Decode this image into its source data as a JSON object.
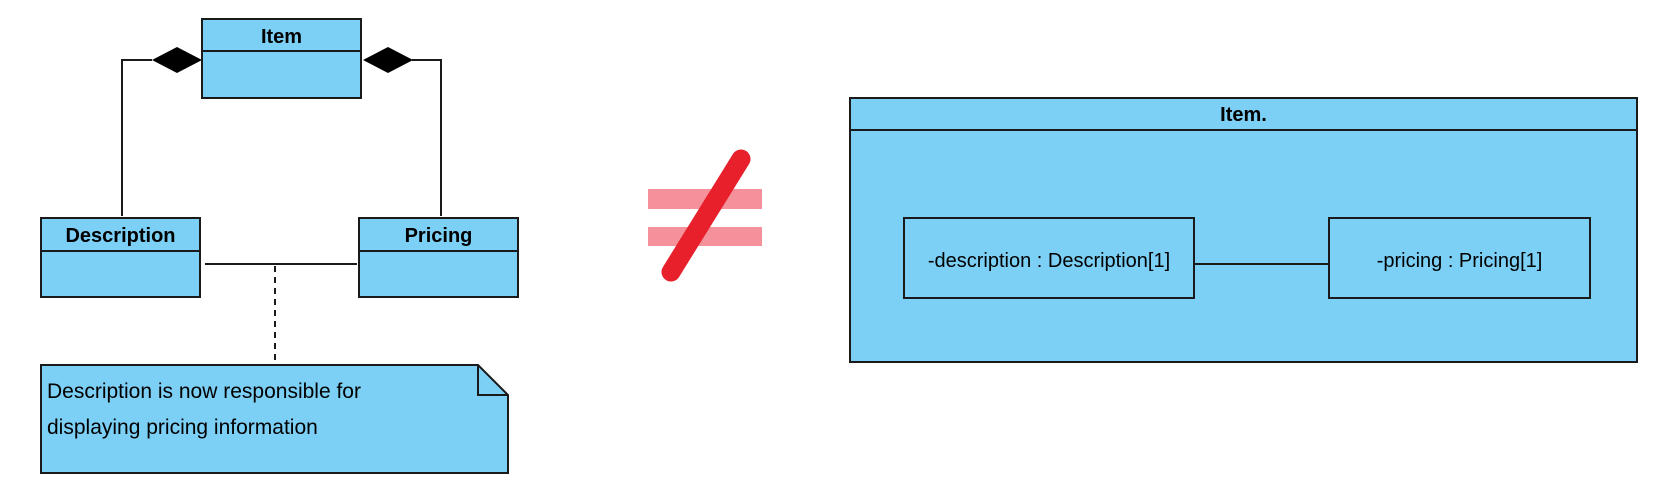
{
  "left_diagram": {
    "item_class": {
      "name": "Item"
    },
    "description_class": {
      "name": "Description"
    },
    "pricing_class": {
      "name": "Pricing"
    },
    "note": {
      "line1": "Description is now responsible for",
      "line2": "displaying pricing information"
    }
  },
  "not_equal_symbol": {
    "colors": {
      "bars": "#f4919a",
      "slash": "#e8202c"
    }
  },
  "right_diagram": {
    "container": {
      "name": "Item."
    },
    "description_part": {
      "label": "-description : Description[1]"
    },
    "pricing_part": {
      "label": "-pricing : Pricing[1]"
    }
  },
  "colors": {
    "fill": "#7ccff5",
    "stroke": "#1a1a1a"
  }
}
